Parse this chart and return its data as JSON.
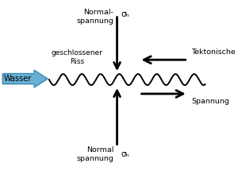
{
  "bg_color": "#ffffff",
  "wave_color": "#000000",
  "arrow_color": "#000000",
  "wasser_fill": "#6ab0d4",
  "wasser_stroke": "#3a8ab0",
  "wasser_text": "Wasser",
  "wasser_text_color": "#000000",
  "label_geschlossener": "geschlossener\nRiss",
  "label_normal_top1": "Normal-",
  "label_normal_top2": "spannung",
  "label_sigma_top": "σₕ",
  "label_normal_bot1": "Normal",
  "label_normal_bot2": "spannung",
  "label_sigma_bot": "σₕ",
  "label_tektonische": "Tektonische",
  "label_spannung": "Spannung",
  "wave_amplitude": 0.035,
  "wave_wavelength": 0.09
}
